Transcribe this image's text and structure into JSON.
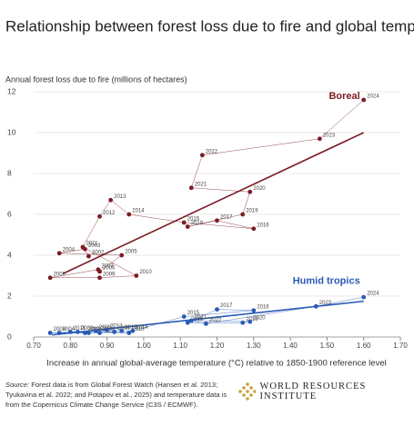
{
  "chart_data": {
    "type": "scatter",
    "title": "Relationship between forest loss due to fire and global temperature",
    "y_label": "Annual forest loss due to fire (millions of hectares)",
    "x_label": "Increase in annual global-average temperature (°C) relative to 1850-1900 reference level",
    "xlim": [
      0.7,
      1.7
    ],
    "xticks": [
      {
        "value": 0.7,
        "label": "0.70"
      },
      {
        "value": 0.8,
        "label": "0.80"
      },
      {
        "value": 0.9,
        "label": "0.90"
      },
      {
        "value": 1.0,
        "label": "1.00"
      },
      {
        "value": 1.1,
        "label": "1.10"
      },
      {
        "value": 1.2,
        "label": "1.20"
      },
      {
        "value": 1.3,
        "label": "1.30"
      },
      {
        "value": 1.4,
        "label": "1.40"
      },
      {
        "value": 1.5,
        "label": "1.50"
      },
      {
        "value": 1.6,
        "label": "1.60"
      },
      {
        "value": 1.7,
        "label": "1.70"
      }
    ],
    "ylim": [
      0,
      12
    ],
    "yticks": [
      0,
      2,
      4,
      6,
      8,
      10,
      12
    ],
    "grid": true,
    "series": [
      {
        "name": "Boreal",
        "color": "#7b1c24",
        "point_labels": [
          "2002",
          "2003",
          "2004",
          "2005",
          "2006",
          "2007",
          "2008",
          "2009",
          "2010",
          "2011",
          "2012",
          "2013",
          "2014",
          "2015",
          "2016",
          "2017",
          "2018",
          "2019",
          "2020",
          "2021",
          "2022",
          "2023",
          "2024"
        ],
        "x": [
          0.85,
          0.84,
          0.77,
          0.94,
          0.88,
          0.876,
          0.745,
          0.88,
          0.98,
          0.834,
          0.88,
          0.91,
          0.96,
          1.11,
          1.3,
          1.2,
          1.12,
          1.27,
          1.29,
          1.13,
          1.16,
          1.48,
          1.6
        ],
        "values": [
          3.95,
          4.3,
          4.1,
          4.0,
          3.2,
          3.3,
          2.9,
          2.9,
          3.0,
          4.4,
          5.9,
          6.7,
          6.0,
          5.6,
          5.3,
          5.7,
          5.4,
          6.0,
          7.1,
          7.3,
          8.9,
          9.7,
          11.6
        ],
        "trend": {
          "x": [
            0.78,
            1.6
          ],
          "values": [
            3.1,
            10.0
          ]
        }
      },
      {
        "name": "Humid tropics",
        "color": "#2a5bb5",
        "point_labels": [
          "2002",
          "2003",
          "2004",
          "2005",
          "2006",
          "2007",
          "2008",
          "2009",
          "2010",
          "2011",
          "2012",
          "2013",
          "2014",
          "2015",
          "2016",
          "2017",
          "2018",
          "2019",
          "2020",
          "2021",
          "2022",
          "2023",
          "2024"
        ],
        "x": [
          0.84,
          0.82,
          0.77,
          0.92,
          0.88,
          0.85,
          0.745,
          0.87,
          0.96,
          0.8,
          0.9,
          0.94,
          0.97,
          1.11,
          1.3,
          1.2,
          1.12,
          1.27,
          1.29,
          1.13,
          1.17,
          1.47,
          1.6
        ],
        "values": [
          0.2,
          0.25,
          0.2,
          0.25,
          0.2,
          0.2,
          0.2,
          0.3,
          0.2,
          0.25,
          0.35,
          0.3,
          0.3,
          1.0,
          1.3,
          1.35,
          0.7,
          0.7,
          0.75,
          0.8,
          0.65,
          1.5,
          1.95
        ],
        "trend": {
          "x": [
            0.75,
            1.6
          ],
          "values": [
            0.1,
            1.75
          ]
        }
      }
    ]
  },
  "source_label": "Source:",
  "source_text": "Forest data is from Global Forest Watch (Hansen et al. 2013; Tyukavina et al. 2022; and Potapov et al., 2025) and temperature data is from the Copernicus Climate Change Service (C3S / ECMWF).",
  "logo_text": "WORLD RESOURCES INSTITUTE"
}
